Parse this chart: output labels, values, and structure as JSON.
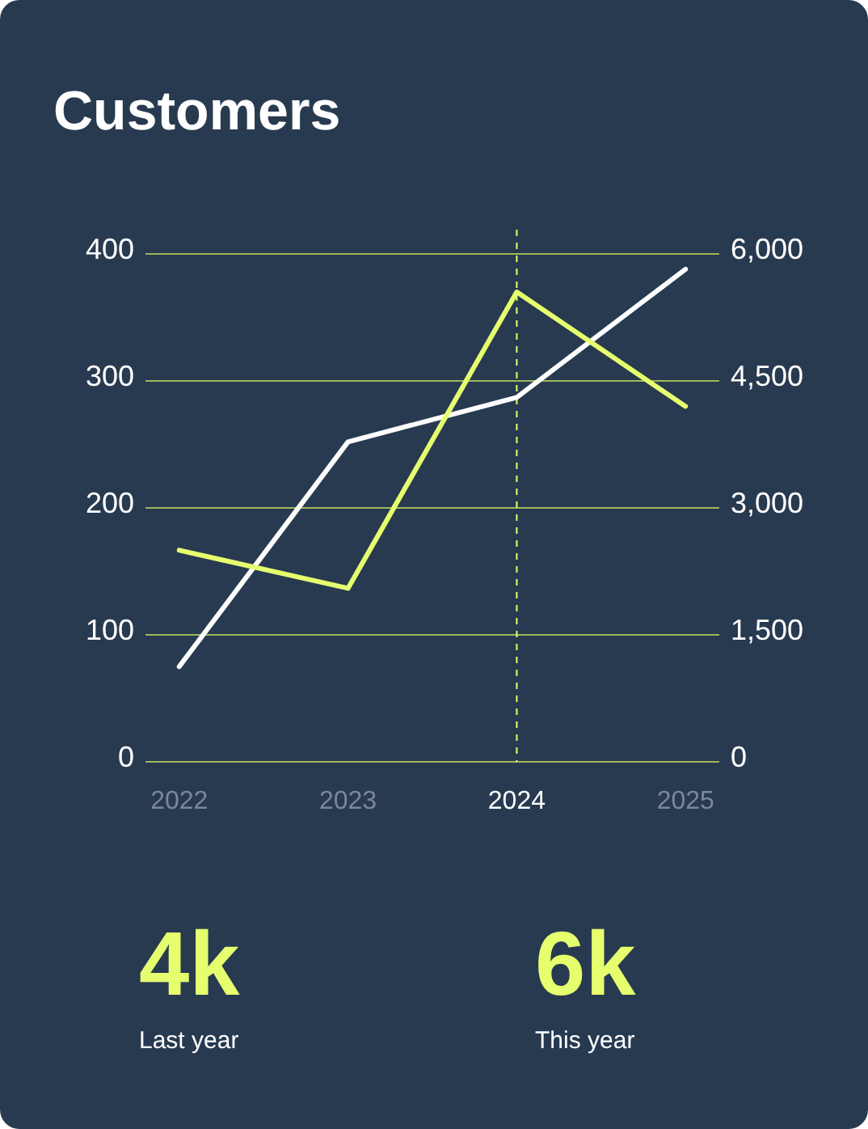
{
  "chart_data": [
    {
      "type": "line",
      "title": "Customers",
      "categories": [
        "2022",
        "2023",
        "2024",
        "2025"
      ],
      "series": [
        {
          "color": "#ffffff",
          "values": [
            75,
            252,
            287,
            388
          ]
        },
        {
          "color": "#e6ff6e",
          "values": [
            2500,
            2050,
            5550,
            4200
          ],
          "axis": "y2"
        }
      ],
      "ylim": [
        0,
        400
      ],
      "yticks": [
        0,
        100,
        200,
        300,
        400
      ],
      "y2lim": [
        0,
        6000
      ],
      "y2ticks": [
        {
          "value": 0,
          "label": "0"
        },
        {
          "value": 1500,
          "label": "1,500"
        },
        {
          "value": 3000,
          "label": "3,000"
        },
        {
          "value": 4500,
          "label": "4,500"
        },
        {
          "value": 6000,
          "label": "6,000"
        }
      ],
      "grid": "y",
      "marker": "none",
      "line_style": "solid",
      "ref_lines": [
        {
          "axis": "x",
          "value": "2024",
          "color": "#e6ff6e",
          "line_style": "dashed"
        }
      ]
    },
    {
      "type": "other",
      "annotations": [
        "4k",
        "Last year",
        "6k",
        "This year"
      ]
    }
  ]
}
